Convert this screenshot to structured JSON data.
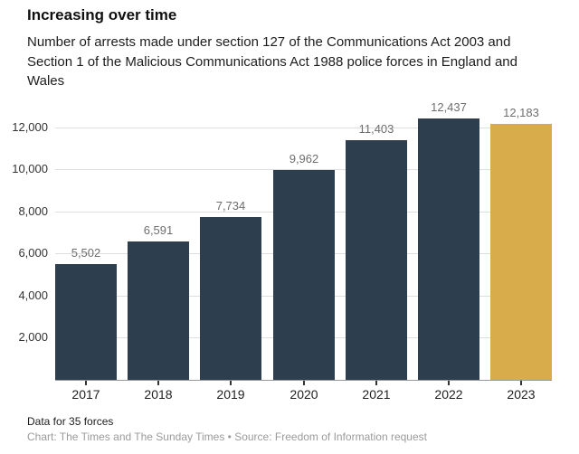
{
  "header": {
    "title": "Increasing over time",
    "subtitle": "Number of arrests made under section 127 of the Communications Act 2003 and Section 1 of the Malicious Communications Act 1988 police forces in England and Wales"
  },
  "chart_data": {
    "type": "bar",
    "title": "Increasing over time",
    "subtitle": "Number of arrests made under section 127 of the Communications Act 2003 and Section 1 of the Malicious Communications Act 1988 police forces in England and Wales",
    "categories": [
      "2017",
      "2018",
      "2019",
      "2020",
      "2021",
      "2022",
      "2023"
    ],
    "values": [
      5502,
      6591,
      7734,
      9962,
      11403,
      12437,
      12183
    ],
    "value_labels": [
      "5,502",
      "6,591",
      "7,734",
      "9,962",
      "11,403",
      "12,437",
      "12,183"
    ],
    "highlight_index": 6,
    "xlabel": "",
    "ylabel": "",
    "ylim": [
      0,
      12800
    ],
    "yticks": [
      2000,
      4000,
      6000,
      8000,
      10000,
      12000
    ],
    "ytick_labels": [
      "2,000",
      "4,000",
      "6,000",
      "8,000",
      "10,000",
      "12,000"
    ],
    "grid": true,
    "legend": "none",
    "colors": {
      "bar": "#2d3e4e",
      "highlight": "#d8ac4a",
      "gridline": "#dedede",
      "baseline": "#999999",
      "value_label": "#6e6e6e",
      "axis_label": "#333333"
    }
  },
  "footer": {
    "note": "Data for 35 forces",
    "credit": "Chart: The Times and The Sunday Times • Source: Freedom of Information request"
  }
}
